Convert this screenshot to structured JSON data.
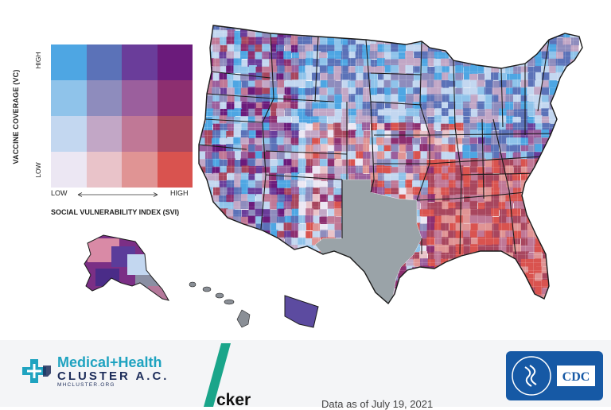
{
  "legend": {
    "y_axis_title": "VACCINE COVERAGE (VC)",
    "y_high": "HIGH",
    "y_low": "LOW",
    "x_axis_title": "SOCIAL VULNERABILITY INDEX (SVI)",
    "x_low": "LOW",
    "x_high": "HIGH",
    "grid_colors": [
      [
        "#4ea6e3",
        "#5b72b8",
        "#6a3d9a",
        "#6b1b7b"
      ],
      [
        "#8fc3ea",
        "#8e8cbd",
        "#9b5f9d",
        "#8d2f70"
      ],
      [
        "#c3d7f0",
        "#c2a7c6",
        "#c07896",
        "#a8465e"
      ],
      [
        "#ece7f3",
        "#e9c3c9",
        "#e09494",
        "#d9534f"
      ]
    ]
  },
  "map": {
    "description_colors": {
      "no_data": "#9aa3a8",
      "state_border": "#1a1a1a"
    }
  },
  "footer": {
    "mh_line1": "Medical+Health",
    "mh_line2": "CLUSTER A.C.",
    "mh_line3": "MHCLUSTER.ORG",
    "tracker_text": "cker",
    "data_as_of": "Data as of July 19, 2021",
    "cdc_label": "CDC",
    "brand_color": "#1fa3c0",
    "stripe_color": "#1aa58a",
    "cdc_color": "#1659a5"
  }
}
